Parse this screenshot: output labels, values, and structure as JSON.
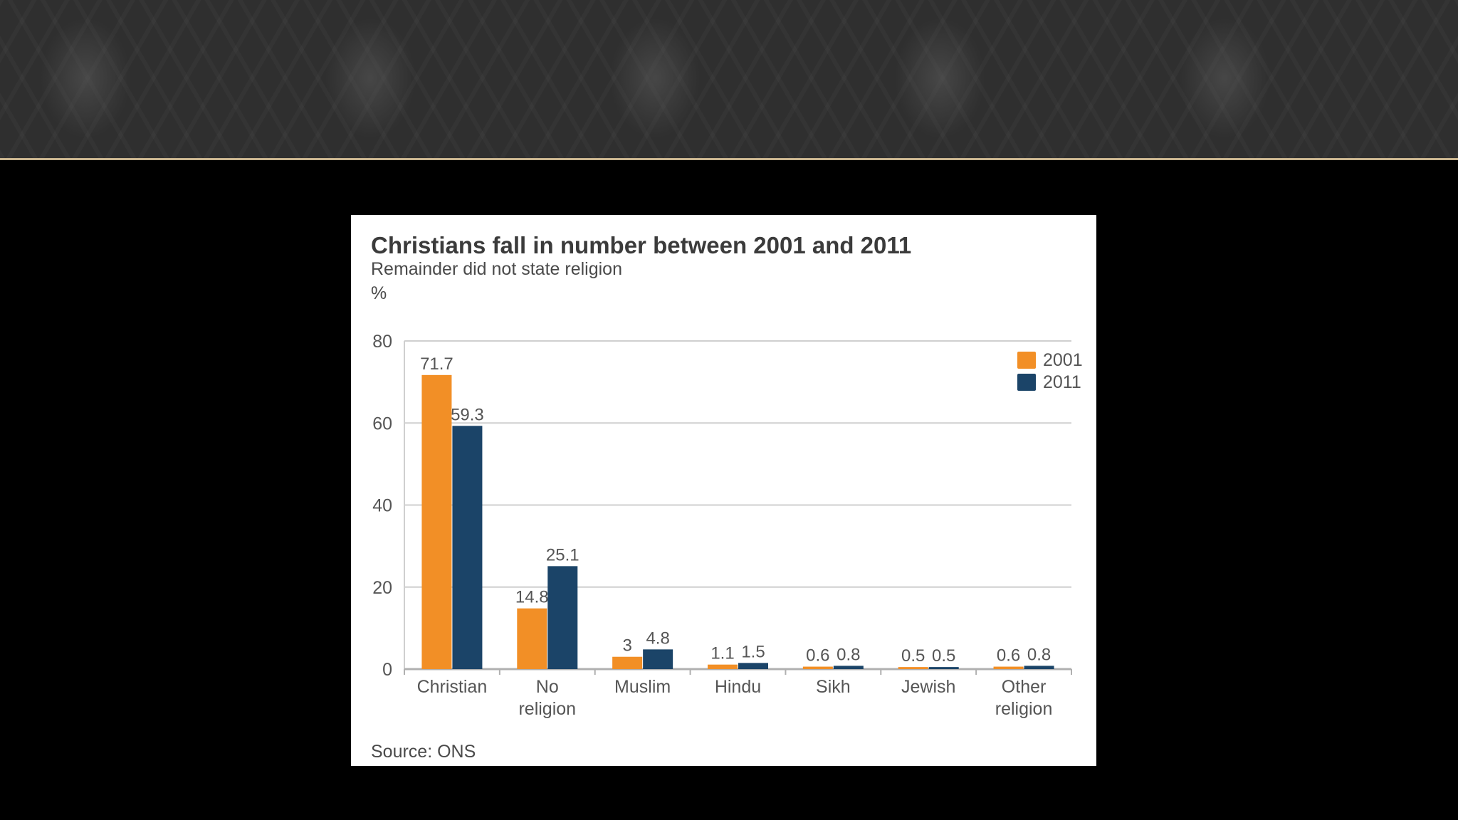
{
  "chart_data": {
    "type": "bar",
    "title": "Christians fall in number between 2001 and 2011",
    "subtitle": "Remainder did not state religion",
    "ylabel": "%",
    "source": "Source: ONS",
    "categories": [
      [
        "Christian"
      ],
      [
        "No",
        "religion"
      ],
      [
        "Muslim"
      ],
      [
        "Hindu"
      ],
      [
        "Sikh"
      ],
      [
        "Jewish"
      ],
      [
        "Other",
        "religion"
      ]
    ],
    "series": [
      {
        "name": "2001",
        "color": "#f28f26",
        "values": [
          71.7,
          14.8,
          3,
          1.1,
          0.6,
          0.5,
          0.6
        ],
        "labels": [
          "71.7",
          "14.8",
          "3",
          "1.1",
          "0.6",
          "0.5",
          "0.6"
        ]
      },
      {
        "name": "2011",
        "color": "#1b4468",
        "values": [
          59.3,
          25.1,
          4.8,
          1.5,
          0.8,
          0.5,
          0.8
        ],
        "labels": [
          "59.3",
          "25.1",
          "4.8",
          "1.5",
          "0.8",
          "0.5",
          "0.8"
        ]
      }
    ],
    "ylim": [
      0,
      80
    ],
    "yticks": [
      0,
      20,
      40,
      60,
      80
    ],
    "grid": true,
    "legend": "top-right"
  }
}
